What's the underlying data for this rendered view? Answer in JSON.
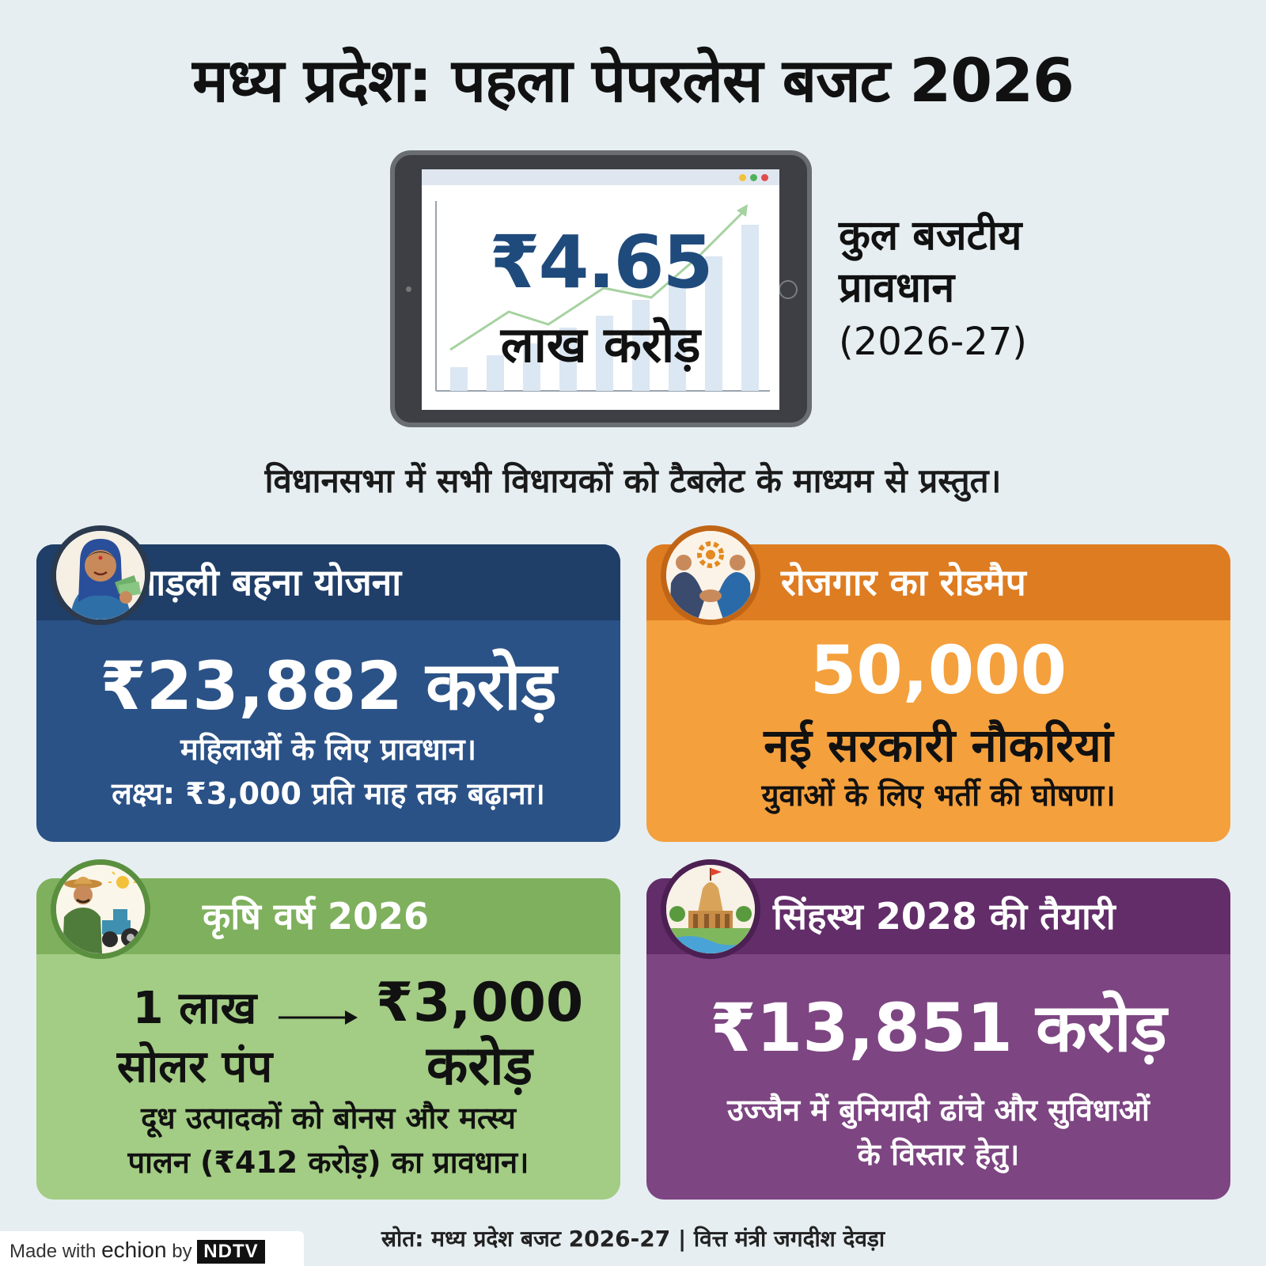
{
  "header": {
    "title": "मध्य प्रदेश: पहला पेपरलेस बजट 2026"
  },
  "tablet": {
    "amount": "₹4.65",
    "unit": "लाख करोड़",
    "side_label_line1": "कुल बजटीय",
    "side_label_line2": "प्रावधान",
    "side_label_line3": "(2026-27)"
  },
  "subtitle": "विधानसभा में सभी विधायकों को टैबलेट के माध्यम से प्रस्तुत।",
  "cards": [
    {
      "title": "लाड़ली बहना योजना",
      "amount": "₹23,882 करोड़",
      "line1": "महिलाओं के लिए प्रावधान।",
      "line2": "लक्ष्य: ₹3,000 प्रति माह तक बढ़ाना।",
      "icon": "woman-with-money-icon",
      "color": "#2b5286"
    },
    {
      "title": "रोजगार का रोडमैप",
      "amount": "50,000",
      "mid": "नई सरकारी नौकरियां",
      "line1": "युवाओं के लिए भर्ती की घोषणा।",
      "icon": "handshake-gear-icon",
      "color": "#f4a03d"
    },
    {
      "title": "कृषि वर्ष 2026",
      "left_line1": "1 लाख",
      "left_line2": "सोलर पंप",
      "right_line1": "₹3,000",
      "right_line2": "करोड़",
      "line1": "दूध उत्पादकों को बोनस और मत्स्य",
      "line2": "पालन (₹412 करोड़) का प्रावधान।",
      "icon": "farmer-tractor-icon",
      "color": "#a3cc84"
    },
    {
      "title": "सिंहस्थ 2028 की तैयारी",
      "amount": "₹13,851 करोड़",
      "line1": "उज्जैन में बुनियादी ढांचे और सुविधाओं",
      "line2": "के विस्तार हेतु।",
      "icon": "temple-river-icon",
      "color": "#7d4582"
    }
  ],
  "source": "स्रोत: मध्य प्रदेश बजट 2026-27 | वित्त मंत्री जगदीश देवड़ा",
  "brand": {
    "prefix": "Made with",
    "name": "echion",
    "by": "by",
    "partner": "NDTV"
  }
}
